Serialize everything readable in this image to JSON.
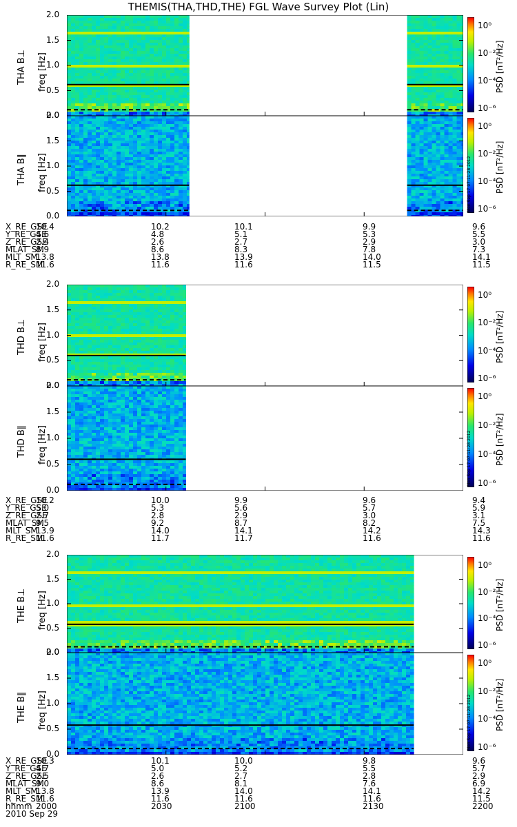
{
  "title": "THEMIS(THA,THD,THE) FGL Wave Survey Plot (Lin)",
  "date_label": "2010 Sep 29",
  "stamp": "Mon Sep 17 07:11:28 2012",
  "chart_data": {
    "type": "heatmap",
    "xaxis": {
      "label": "hhmm",
      "ticks": [
        "2000",
        "2030",
        "2100",
        "2130",
        "2200"
      ]
    },
    "yaxis": {
      "ylim": [
        0,
        2.0
      ],
      "ticks": [
        "0.0",
        "0.5",
        "1.0",
        "1.5",
        "2.0"
      ],
      "unit_label": "freq [Hz]"
    },
    "colorbar": {
      "label": "PSD [nT²/Hz]",
      "scale": "log",
      "ticks": [
        "10⁰",
        "10⁻²",
        "10⁻⁴",
        "10⁻⁶"
      ],
      "colors": [
        "#000000",
        "#5a0080",
        "#0000ff",
        "#00c0ff",
        "#00ff80",
        "#ffff00",
        "#ff8000",
        "#ff0000"
      ]
    },
    "panels": [
      {
        "ylabel": "THA B⊥",
        "data_ranges_hhmm": [
          [
            "2000",
            "2037"
          ],
          [
            "2143",
            "2200"
          ]
        ],
        "gyro_line_hz": 0.62,
        "dashed_line_hz": 0.12
      },
      {
        "ylabel": "THA B∥",
        "data_ranges_hhmm": [
          [
            "2000",
            "2037"
          ],
          [
            "2143",
            "2200"
          ]
        ],
        "gyro_line_hz": 0.62,
        "dashed_line_hz": 0.12
      },
      {
        "ylabel": "THD B⊥",
        "data_ranges_hhmm": [
          [
            "2000",
            "2036"
          ]
        ],
        "gyro_line_hz": 0.6,
        "dashed_line_hz": 0.12
      },
      {
        "ylabel": "THD B∥",
        "data_ranges_hhmm": [
          [
            "2000",
            "2036"
          ]
        ],
        "gyro_line_hz": 0.6,
        "dashed_line_hz": 0.12
      },
      {
        "ylabel": "THE B⊥",
        "data_ranges_hhmm": [
          [
            "2000",
            "2145"
          ]
        ],
        "gyro_line_hz": 0.58,
        "dashed_line_hz": 0.12
      },
      {
        "ylabel": "THE B∥",
        "data_ranges_hhmm": [
          [
            "2000",
            "2145"
          ]
        ],
        "gyro_line_hz": 0.58,
        "dashed_line_hz": 0.12
      }
    ],
    "ephemeris": [
      {
        "rows": [
          {
            "name": "X_RE_GSE",
            "values": [
              "10.4",
              "10.2",
              "10.1",
              "9.9",
              "9.6"
            ]
          },
          {
            "name": "Y_RE_GSE",
            "values": [
              "4.6",
              "4.8",
              "5.1",
              "5.3",
              "5.5"
            ]
          },
          {
            "name": "Z_RE_GSE",
            "values": [
              "2.4",
              "2.6",
              "2.7",
              "2.9",
              "3.0"
            ]
          },
          {
            "name": "MLAT_SM",
            "values": [
              "8.9",
              "8.6",
              "8.3",
              "7.8",
              "7.3"
            ]
          },
          {
            "name": "MLT_SM",
            "values": [
              "13.8",
              "13.8",
              "13.9",
              "14.0",
              "14.1"
            ]
          },
          {
            "name": "R_RE_SM",
            "values": [
              "11.6",
              "11.6",
              "11.6",
              "11.5",
              "11.5"
            ]
          }
        ]
      },
      {
        "rows": [
          {
            "name": "X_RE_GSE",
            "values": [
              "10.2",
              "10.0",
              "9.9",
              "9.6",
              "9.4"
            ]
          },
          {
            "name": "Y_RE_GSE",
            "values": [
              "5.0",
              "5.3",
              "5.6",
              "5.7",
              "5.9"
            ]
          },
          {
            "name": "Z_RE_GSE",
            "values": [
              "2.7",
              "2.8",
              "2.9",
              "3.0",
              "3.1"
            ]
          },
          {
            "name": "MLAT_SM",
            "values": [
              "9.5",
              "9.2",
              "8.7",
              "8.2",
              "7.5"
            ]
          },
          {
            "name": "MLT_SM",
            "values": [
              "13.9",
              "14.0",
              "14.1",
              "14.2",
              "14.3"
            ]
          },
          {
            "name": "R_RE_SM",
            "values": [
              "11.6",
              "11.7",
              "11.7",
              "11.6",
              "11.6"
            ]
          }
        ]
      },
      {
        "rows": [
          {
            "name": "X_RE_GSE",
            "values": [
              "10.3",
              "10.1",
              "10.0",
              "9.8",
              "9.6"
            ]
          },
          {
            "name": "Y_RE_GSE",
            "values": [
              "4.7",
              "5.0",
              "5.2",
              "5.5",
              "5.7"
            ]
          },
          {
            "name": "Z_RE_GSE",
            "values": [
              "2.5",
              "2.6",
              "2.7",
              "2.8",
              "2.9"
            ]
          },
          {
            "name": "MLAT_SM",
            "values": [
              "9.0",
              "8.6",
              "8.1",
              "7.6",
              "6.9"
            ]
          },
          {
            "name": "MLT_SM",
            "values": [
              "13.8",
              "13.9",
              "14.0",
              "14.1",
              "14.2"
            ]
          },
          {
            "name": "R_RE_SM",
            "values": [
              "11.6",
              "11.6",
              "11.6",
              "11.6",
              "11.5"
            ]
          }
        ]
      }
    ]
  }
}
